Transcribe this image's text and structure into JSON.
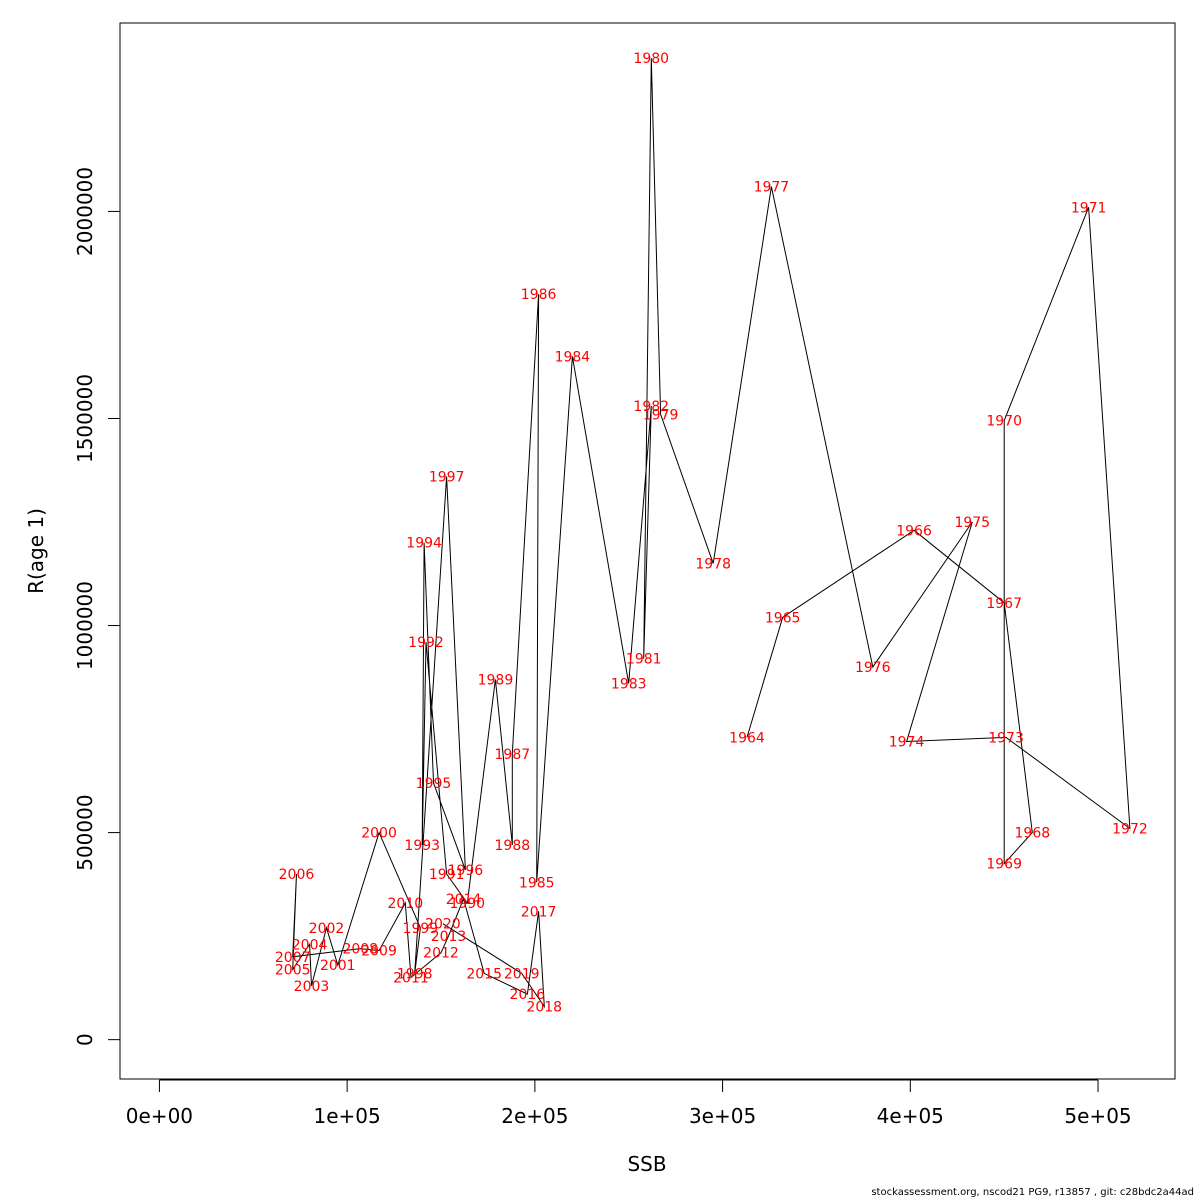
{
  "chart_data": {
    "type": "line",
    "xlabel": "SSB",
    "ylabel": "R(age 1)",
    "xlim": [
      -21000,
      541000
    ],
    "ylim": [
      -95000,
      2455000
    ],
    "x_ticks": [
      0,
      100000,
      200000,
      300000,
      400000,
      500000
    ],
    "x_tick_labels": [
      "0e+00",
      "1e+05",
      "2e+05",
      "3e+05",
      "4e+05",
      "5e+05"
    ],
    "y_ticks": [
      0,
      500000,
      1000000,
      1500000,
      2000000
    ],
    "y_tick_labels": [
      "0",
      "500000",
      "1000000",
      "1500000",
      "2000000"
    ],
    "grid": false,
    "label_color": "#ff0000",
    "line_color": "#000000",
    "points": [
      {
        "year": "1964",
        "x": 313000,
        "y": 730000
      },
      {
        "year": "1965",
        "x": 332000,
        "y": 1020000
      },
      {
        "year": "1966",
        "x": 402000,
        "y": 1230000
      },
      {
        "year": "1967",
        "x": 450000,
        "y": 1055000
      },
      {
        "year": "1968",
        "x": 465000,
        "y": 500000
      },
      {
        "year": "1969",
        "x": 450000,
        "y": 425000
      },
      {
        "year": "1970",
        "x": 450000,
        "y": 1495000
      },
      {
        "year": "1971",
        "x": 495000,
        "y": 2010000
      },
      {
        "year": "1972",
        "x": 517000,
        "y": 510000
      },
      {
        "year": "1973",
        "x": 451000,
        "y": 730000
      },
      {
        "year": "1974",
        "x": 398000,
        "y": 720000
      },
      {
        "year": "1975",
        "x": 433000,
        "y": 1250000
      },
      {
        "year": "1976",
        "x": 380000,
        "y": 900000
      },
      {
        "year": "1977",
        "x": 326000,
        "y": 2060000
      },
      {
        "year": "1978",
        "x": 295000,
        "y": 1150000
      },
      {
        "year": "1979",
        "x": 267000,
        "y": 1510000
      },
      {
        "year": "1980",
        "x": 262000,
        "y": 2370000
      },
      {
        "year": "1981",
        "x": 258000,
        "y": 920000
      },
      {
        "year": "1982",
        "x": 262000,
        "y": 1530000
      },
      {
        "year": "1983",
        "x": 250000,
        "y": 860000
      },
      {
        "year": "1984",
        "x": 220000,
        "y": 1650000
      },
      {
        "year": "1985",
        "x": 201000,
        "y": 380000
      },
      {
        "year": "1986",
        "x": 202000,
        "y": 1800000
      },
      {
        "year": "1987",
        "x": 188000,
        "y": 690000
      },
      {
        "year": "1988",
        "x": 188000,
        "y": 470000
      },
      {
        "year": "1989",
        "x": 179000,
        "y": 870000
      },
      {
        "year": "1990",
        "x": 164000,
        "y": 330000
      },
      {
        "year": "1991",
        "x": 153000,
        "y": 400000
      },
      {
        "year": "1992",
        "x": 142000,
        "y": 960000
      },
      {
        "year": "1993",
        "x": 140000,
        "y": 470000
      },
      {
        "year": "1994",
        "x": 141000,
        "y": 1200000
      },
      {
        "year": "1995",
        "x": 146000,
        "y": 620000
      },
      {
        "year": "1996",
        "x": 163000,
        "y": 410000
      },
      {
        "year": "1997",
        "x": 153000,
        "y": 1360000
      },
      {
        "year": "1998",
        "x": 136000,
        "y": 160000
      },
      {
        "year": "1999",
        "x": 139000,
        "y": 270000
      },
      {
        "year": "2000",
        "x": 117000,
        "y": 500000
      },
      {
        "year": "2001",
        "x": 95000,
        "y": 180000
      },
      {
        "year": "2002",
        "x": 89000,
        "y": 270000
      },
      {
        "year": "2003",
        "x": 81000,
        "y": 130000
      },
      {
        "year": "2004",
        "x": 80000,
        "y": 230000
      },
      {
        "year": "2005",
        "x": 71000,
        "y": 170000
      },
      {
        "year": "2006",
        "x": 73000,
        "y": 400000
      },
      {
        "year": "2007",
        "x": 71000,
        "y": 200000
      },
      {
        "year": "2008",
        "x": 107000,
        "y": 220000
      },
      {
        "year": "2009",
        "x": 117000,
        "y": 215000
      },
      {
        "year": "2010",
        "x": 131000,
        "y": 330000
      },
      {
        "year": "2011",
        "x": 134000,
        "y": 150000
      },
      {
        "year": "2012",
        "x": 150000,
        "y": 210000
      },
      {
        "year": "2013",
        "x": 154000,
        "y": 250000
      },
      {
        "year": "2014",
        "x": 162000,
        "y": 340000
      },
      {
        "year": "2015",
        "x": 173000,
        "y": 160000
      },
      {
        "year": "2016",
        "x": 196000,
        "y": 110000
      },
      {
        "year": "2017",
        "x": 202000,
        "y": 310000
      },
      {
        "year": "2018",
        "x": 205000,
        "y": 80000
      },
      {
        "year": "2019",
        "x": 193000,
        "y": 160000
      },
      {
        "year": "2020",
        "x": 151000,
        "y": 280000
      }
    ]
  },
  "footer": {
    "text": "stockassessment.org, nscod21  PG9, r13857 , git: c28bdc2a44ad"
  }
}
